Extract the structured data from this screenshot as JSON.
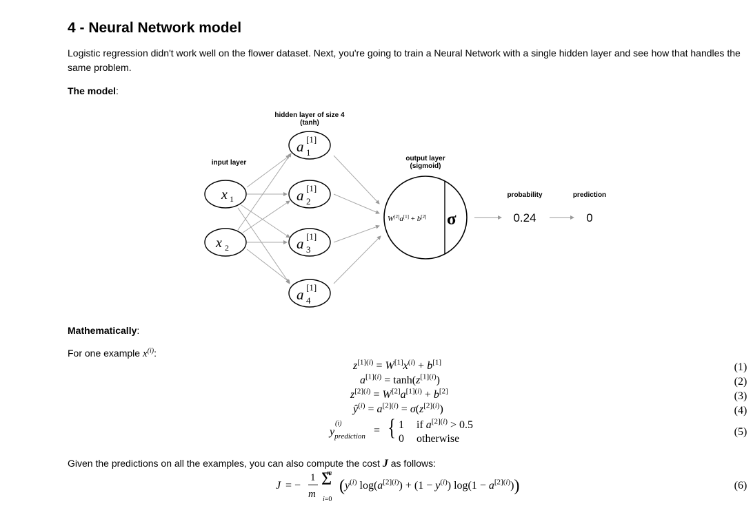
{
  "section": {
    "title": "4 - Neural Network model",
    "intro": "Logistic regression didn't work well on the flower dataset. Next, you're going to train a Neural Network with a single hidden layer and see how that handles the same problem.",
    "model_label": "The model",
    "math_label": "Mathematically",
    "example_prefix": "For one example ",
    "cost_text": "Given the predictions on all the examples, you can also compute the cost "
  },
  "diagram": {
    "hidden_title": "hidden layer of size 4",
    "hidden_sub": "(tanh)",
    "input_title": "input layer",
    "output_title": "output layer",
    "output_sub": "(sigmoid)",
    "probability_label": "probability",
    "prediction_label": "prediction",
    "probability_value": "0.24",
    "prediction_value": "0"
  },
  "equations": {
    "numbers": [
      "(1)",
      "(2)",
      "(3)",
      "(4)",
      "(5)",
      "(6)"
    ],
    "piece_if": "if",
    "piece_threshold": "> 0.5",
    "piece_otherwise": "otherwise"
  }
}
